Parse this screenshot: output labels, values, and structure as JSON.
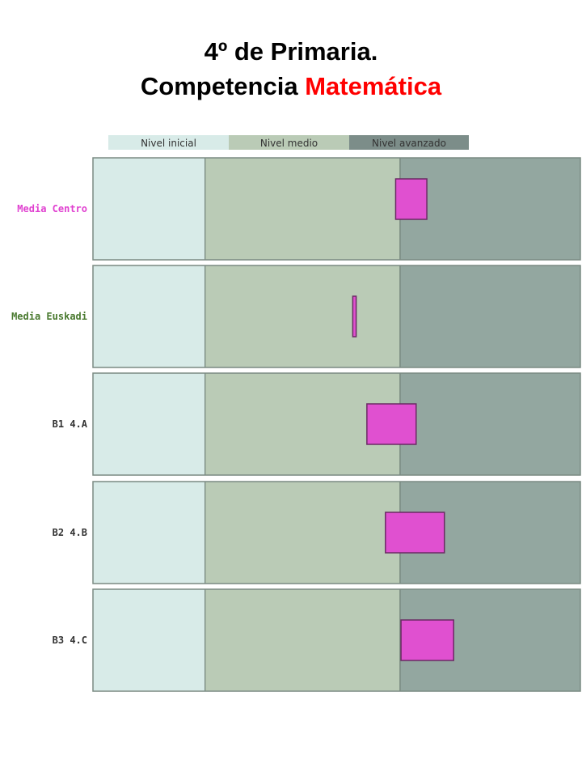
{
  "page": {
    "title_line1": "4º de Primaria.",
    "title_line2_black": "Competencia ",
    "title_line2_red": "Matemática"
  },
  "colors": {
    "nivel_inicial": "#d8ebe8",
    "nivel_medio": "#bacbb6",
    "nivel_avanzado": "#93a7a0",
    "legend_avanzado": "#7c8d89",
    "bar_fill": "#e050d0",
    "bar_stroke": "#6b2a64",
    "label_centro": "#e040d0",
    "label_euskadi": "#4a7a30",
    "label_default": "#333333",
    "title_accent": "#ff0000"
  },
  "chart_data": {
    "type": "range-bar",
    "xlim": [
      0,
      100
    ],
    "bands": [
      {
        "name": "Nivel inicial",
        "from": 0,
        "to": 23
      },
      {
        "name": "Nivel medio",
        "from": 23,
        "to": 63
      },
      {
        "name": "Nivel avanzado",
        "from": 63,
        "to": 100
      }
    ],
    "legend": [
      "Nivel inicial",
      "Nivel medio",
      "Nivel avanzado"
    ],
    "rows": [
      {
        "label": "Media Centro",
        "label_color": "label_centro",
        "low": 62.1,
        "high": 68.5
      },
      {
        "label": "Media Euskadi",
        "label_color": "label_euskadi",
        "low": 53.3,
        "high": 54.0
      },
      {
        "label": "B1 4.A",
        "label_color": "label_default",
        "low": 56.2,
        "high": 66.3
      },
      {
        "label": "B2 4.B",
        "label_color": "label_default",
        "low": 60.0,
        "high": 72.1
      },
      {
        "label": "B3 4.C",
        "label_color": "label_default",
        "low": 63.2,
        "high": 74.0
      }
    ]
  }
}
